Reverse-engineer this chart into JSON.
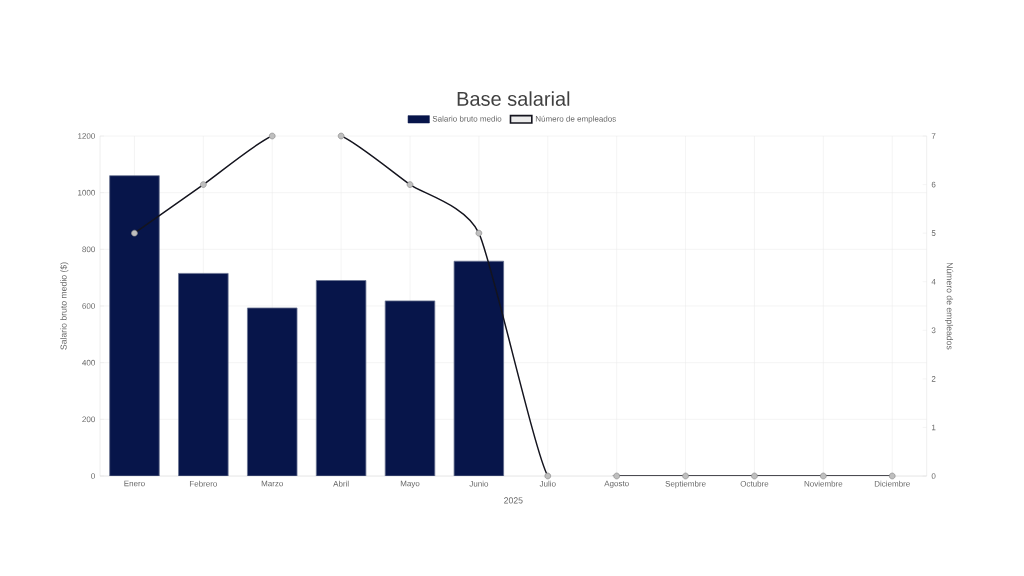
{
  "chart_data": {
    "type": "bar",
    "title": "Base salarial",
    "xlabel": "2025",
    "ylabel": "Salario bruto medio ($)",
    "y2label": "Número de empleados",
    "categories": [
      "Enero",
      "Febrero",
      "Marzo",
      "Abril",
      "Mayo",
      "Junio",
      "Julio",
      "Agosto",
      "Septiembre",
      "Octubre",
      "Noviembre",
      "Diciembre"
    ],
    "series": [
      {
        "name": "Salario bruto medio",
        "color": "#07154a",
        "values": [
          1060,
          715,
          593,
          690,
          618,
          758,
          null,
          null,
          null,
          null,
          null,
          null
        ]
      },
      {
        "name": "Número de empleados",
        "type": "line",
        "axis": "y2",
        "color": "#14141e",
        "marker": "circle",
        "values": [
          5,
          6,
          7,
          7,
          6,
          5,
          0,
          0,
          0,
          0,
          0,
          0
        ]
      }
    ],
    "ylim": [
      0,
      1200
    ],
    "yticks": [
      0,
      200,
      400,
      600,
      800,
      1000,
      1200
    ],
    "y2lim": [
      0,
      7
    ],
    "y2ticks": [
      0,
      1,
      2,
      3,
      4,
      5,
      6,
      7
    ],
    "grid": true,
    "legend": "top"
  }
}
